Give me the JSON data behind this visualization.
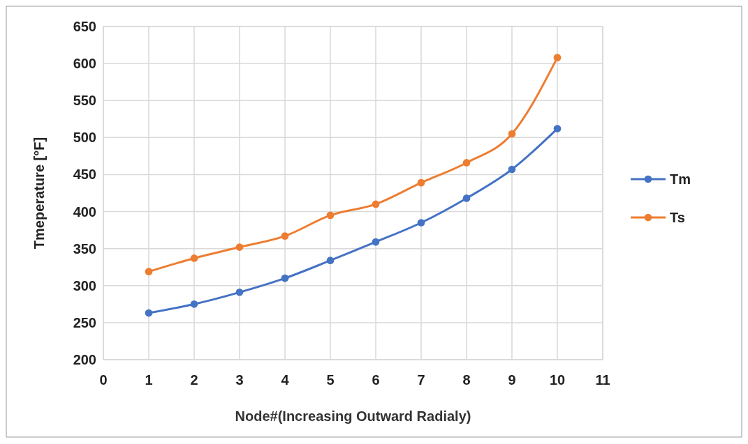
{
  "chart_data": {
    "type": "line",
    "xlabel": "Node#(Increasing Outward Radialy)",
    "ylabel": "Tmeperature [°F]",
    "x": [
      1,
      2,
      3,
      4,
      5,
      6,
      7,
      8,
      9,
      10
    ],
    "series": [
      {
        "name": "Tm",
        "color": "#4472c4",
        "values": [
          263,
          275,
          291,
          310,
          334,
          359,
          385,
          418,
          457,
          512
        ]
      },
      {
        "name": "Ts",
        "color": "#ed7d31",
        "values": [
          319,
          337,
          352,
          367,
          395,
          410,
          439,
          466,
          505,
          608
        ]
      }
    ],
    "xlim": [
      0,
      11
    ],
    "xticks": [
      0,
      1,
      2,
      3,
      4,
      5,
      6,
      7,
      8,
      9,
      10,
      11
    ],
    "ylim": [
      200,
      650
    ],
    "yticks": [
      200,
      250,
      300,
      350,
      400,
      450,
      500,
      550,
      600,
      650
    ],
    "grid": true,
    "legend": "right",
    "marker": "circle",
    "line_style": "solid"
  }
}
